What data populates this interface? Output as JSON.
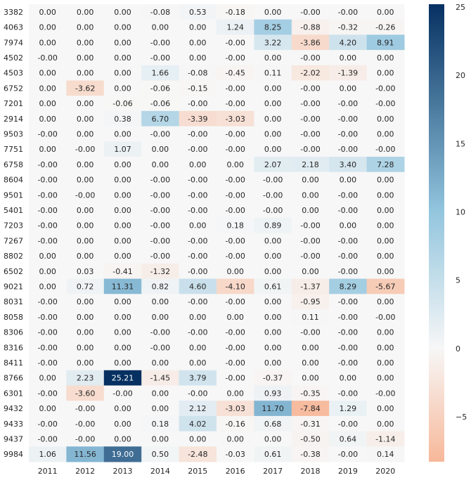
{
  "chart_data": {
    "type": "heatmap",
    "title": "",
    "xlabel": "",
    "ylabel": "",
    "columns": [
      "2011",
      "2012",
      "2013",
      "2014",
      "2015",
      "2016",
      "2017",
      "2018",
      "2019",
      "2020"
    ],
    "rows": [
      "3382",
      "4063",
      "7974",
      "4502",
      "4503",
      "6752",
      "7201",
      "2914",
      "9503",
      "7751",
      "6758",
      "8604",
      "9501",
      "5401",
      "7203",
      "7267",
      "8802",
      "6502",
      "9021",
      "8031",
      "8058",
      "8306",
      "8316",
      "8411",
      "8766",
      "6301",
      "9432",
      "9433",
      "9437",
      "9984"
    ],
    "values": [
      [
        "0.00",
        "0.00",
        "0.00",
        "-0.08",
        "0.53",
        "-0.18",
        "0.00",
        "-0.00",
        "-0.00",
        "0.00"
      ],
      [
        "0.00",
        "0.00",
        "0.00",
        "0.00",
        "0.00",
        "1.24",
        "8.25",
        "-0.88",
        "-0.32",
        "-0.26"
      ],
      [
        "0.00",
        "0.00",
        "0.00",
        "-0.00",
        "0.00",
        "-0.00",
        "3.22",
        "-3.86",
        "4.20",
        "8.91"
      ],
      [
        "-0.00",
        "0.00",
        "0.00",
        "-0.00",
        "0.00",
        "-0.00",
        "0.00",
        "-0.00",
        "0.00",
        "0.00"
      ],
      [
        "0.00",
        "0.00",
        "0.00",
        "1.66",
        "-0.08",
        "-0.45",
        "0.11",
        "-2.02",
        "-1.39",
        "0.00"
      ],
      [
        "0.00",
        "-3.62",
        "0.00",
        "-0.06",
        "-0.15",
        "-0.00",
        "0.00",
        "-0.00",
        "0.00",
        "-0.00"
      ],
      [
        "0.00",
        "0.00",
        "-0.06",
        "-0.06",
        "-0.00",
        "-0.00",
        "0.00",
        "-0.00",
        "-0.00",
        "-0.00"
      ],
      [
        "0.00",
        "0.00",
        "0.38",
        "6.70",
        "-3.39",
        "-3.03",
        "0.00",
        "-0.00",
        "-0.00",
        "0.00"
      ],
      [
        "-0.00",
        "0.00",
        "0.00",
        "-0.00",
        "-0.00",
        "-0.00",
        "0.00",
        "-0.00",
        "-0.00",
        "0.00"
      ],
      [
        "0.00",
        "-0.00",
        "1.07",
        "0.00",
        "-0.00",
        "-0.00",
        "0.00",
        "-0.00",
        "-0.00",
        "-0.00"
      ],
      [
        "-0.00",
        "0.00",
        "0.00",
        "0.00",
        "0.00",
        "0.00",
        "2.07",
        "2.18",
        "3.40",
        "7.28"
      ],
      [
        "-0.00",
        "0.00",
        "0.00",
        "-0.00",
        "-0.00",
        "-0.00",
        "-0.00",
        "0.00",
        "0.00",
        "0.00"
      ],
      [
        "-0.00",
        "-0.00",
        "0.00",
        "-0.00",
        "-0.00",
        "-0.00",
        "-0.00",
        "0.00",
        "-0.00",
        "0.00"
      ],
      [
        "-0.00",
        "0.00",
        "0.00",
        "-0.00",
        "-0.00",
        "-0.00",
        "-0.00",
        "0.00",
        "-0.00",
        "0.00"
      ],
      [
        "-0.00",
        "0.00",
        "0.00",
        "-0.00",
        "0.00",
        "0.18",
        "0.89",
        "-0.00",
        "0.00",
        "0.00"
      ],
      [
        "-0.00",
        "0.00",
        "0.00",
        "-0.00",
        "-0.00",
        "-0.00",
        "0.00",
        "-0.00",
        "-0.00",
        "0.00"
      ],
      [
        "0.00",
        "0.00",
        "0.00",
        "-0.00",
        "-0.00",
        "-0.00",
        "0.00",
        "-0.00",
        "-0.00",
        "0.00"
      ],
      [
        "0.00",
        "0.03",
        "-0.41",
        "-1.32",
        "-0.00",
        "0.00",
        "0.00",
        "0.00",
        "-0.00",
        "0.00"
      ],
      [
        "0.00",
        "0.72",
        "11.31",
        "0.82",
        "4.60",
        "-4.10",
        "0.61",
        "-1.37",
        "8.29",
        "-5.67"
      ],
      [
        "-0.00",
        "0.00",
        "0.00",
        "0.00",
        "-0.00",
        "-0.00",
        "0.00",
        "-0.95",
        "-0.00",
        "0.00"
      ],
      [
        "-0.00",
        "0.00",
        "0.00",
        "0.00",
        "0.00",
        "0.00",
        "0.00",
        "0.11",
        "-0.00",
        "-0.00"
      ],
      [
        "-0.00",
        "0.00",
        "0.00",
        "-0.00",
        "-0.00",
        "-0.00",
        "0.00",
        "-0.00",
        "-0.00",
        "0.00"
      ],
      [
        "-0.00",
        "0.00",
        "0.00",
        "-0.00",
        "0.00",
        "-0.00",
        "0.00",
        "0.00",
        "-0.00",
        "0.00"
      ],
      [
        "-0.00",
        "0.00",
        "0.00",
        "0.00",
        "0.00",
        "-0.00",
        "0.00",
        "0.00",
        "-0.00",
        "0.00"
      ],
      [
        "0.00",
        "2.23",
        "25.21",
        "-1.45",
        "3.79",
        "-0.00",
        "-0.37",
        "0.00",
        "0.00",
        "0.00"
      ],
      [
        "-0.00",
        "-3.60",
        "-0.00",
        "0.00",
        "-0.00",
        "0.00",
        "0.93",
        "-0.35",
        "-0.00",
        "-0.00"
      ],
      [
        "0.00",
        "-0.00",
        "0.00",
        "0.00",
        "2.12",
        "-3.03",
        "11.70",
        "-7.84",
        "1.29",
        "0.00"
      ],
      [
        "-0.00",
        "-0.00",
        "0.00",
        "0.18",
        "4.02",
        "-0.16",
        "0.68",
        "-0.31",
        "-0.00",
        "0.00"
      ],
      [
        "-0.00",
        "-0.00",
        "0.00",
        "0.00",
        "0.00",
        "0.00",
        "0.00",
        "-0.50",
        "0.64",
        "-1.14"
      ],
      [
        "1.06",
        "11.56",
        "19.00",
        "0.50",
        "-2.48",
        "-0.03",
        "0.61",
        "-0.38",
        "-0.00",
        "0.14"
      ]
    ],
    "colorbar": {
      "min": -8.3,
      "max": 25.21,
      "center": 0,
      "ticks": [
        -5,
        0,
        5,
        10,
        15,
        20,
        25
      ],
      "colors": {
        "negative_end": "#f7b89a",
        "center": "#f7f7f7",
        "positive_mid": "#92c5de",
        "positive_end": "#053061"
      }
    },
    "grid": false
  }
}
